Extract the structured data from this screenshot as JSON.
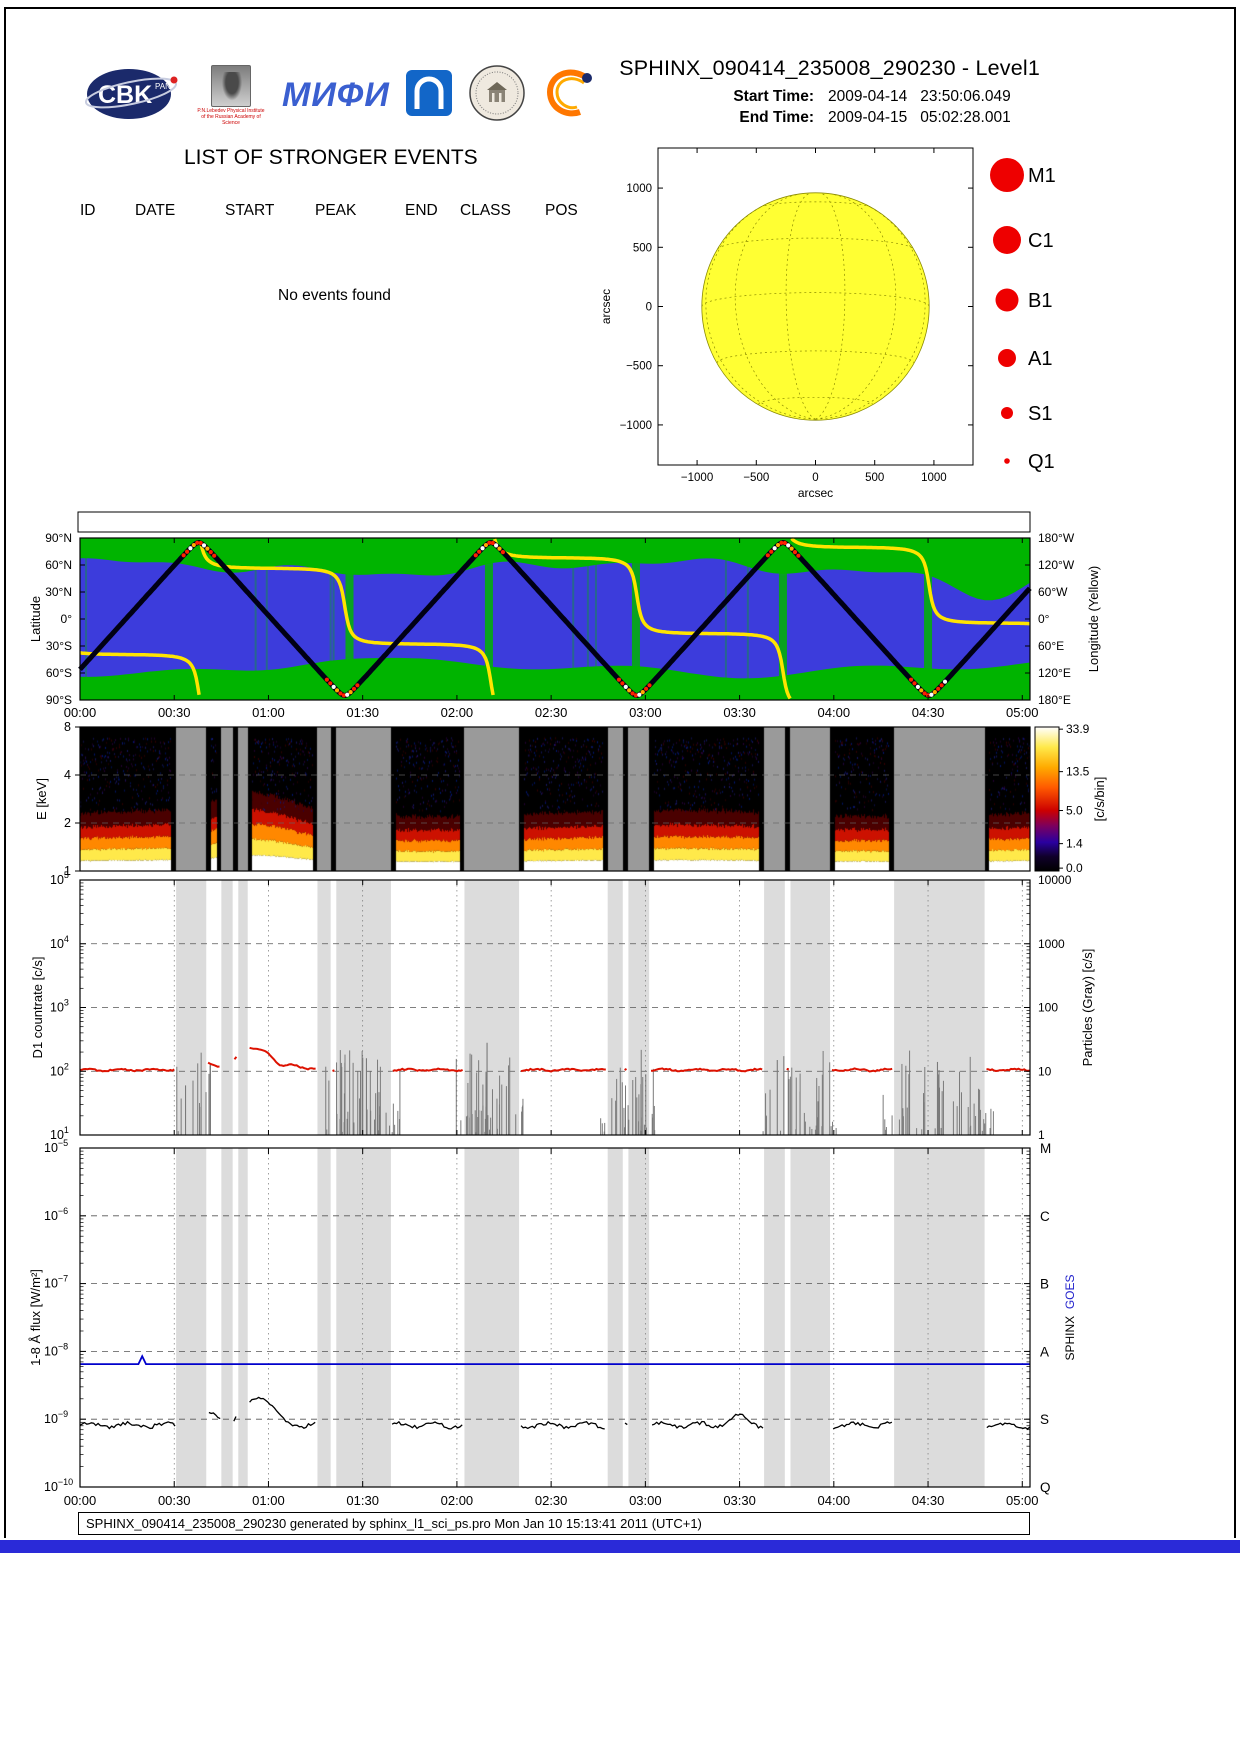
{
  "page": {
    "title": "SPHINX_090414_235008_290230 - Level1",
    "start_time_label": "Start Time:",
    "start_time": "2009-04-14   23:50:06.049",
    "end_time_label": "End Time:",
    "end_time": "2009-04-15   05:02:28.001",
    "footer": "SPHINX_090414_235008_290230 generated by sphinx_l1_sci_ps.pro Mon Jan 10 15:13:41 2011 (UTC+1)"
  },
  "logos": {
    "cbk_text": "CBK",
    "cbk_sub": "PAN",
    "lebedev_caption": "P.N.Lebedev Physical Institute of the Russian Academy of Science",
    "mephi_text": "МИФИ"
  },
  "events": {
    "title": "LIST OF STRONGER EVENTS",
    "columns": [
      "ID",
      "DATE",
      "START",
      "PEAK",
      "END",
      "CLASS",
      "POS"
    ],
    "empty_message": "No events found"
  },
  "timeline": {
    "hours": 5.041,
    "tick_interval_h": 0.5,
    "tick_labels": [
      "00:00",
      "00:30",
      "01:00",
      "01:30",
      "02:00",
      "02:30",
      "03:00",
      "03:30",
      "04:00",
      "04:30",
      "05:00"
    ],
    "gaps": [
      [
        0.51,
        0.67
      ],
      [
        0.75,
        0.81
      ],
      [
        0.84,
        0.89
      ],
      [
        1.26,
        1.33
      ],
      [
        1.36,
        1.65
      ],
      [
        2.04,
        2.33
      ],
      [
        2.8,
        2.88
      ],
      [
        2.91,
        3.02
      ],
      [
        3.63,
        3.74
      ],
      [
        3.77,
        3.98
      ],
      [
        4.32,
        4.8
      ]
    ]
  },
  "chart_data": [
    {
      "id": "sun",
      "type": "scatter",
      "title": "",
      "xlabel": "arcsec",
      "ylabel": "arcsec",
      "axis_ticks": [
        -1000,
        -500,
        0,
        500,
        1000
      ],
      "axis_range": [
        -1330,
        1330
      ],
      "sun_radius_arcsec": 960,
      "sun_color": "#ffff33",
      "grid_color": "#8a8a00",
      "flare_points": [],
      "legend_color": "#ee0000",
      "legend": [
        {
          "label": "M1",
          "r": 17
        },
        {
          "label": "C1",
          "r": 14
        },
        {
          "label": "B1",
          "r": 11.5
        },
        {
          "label": "A1",
          "r": 9
        },
        {
          "label": "S1",
          "r": 6
        },
        {
          "label": "Q1",
          "r": 2.8
        }
      ]
    },
    {
      "id": "orbit",
      "type": "line",
      "ylabel_left": "Latitude",
      "ylabel_right": "Longitude (Yellow)",
      "lat_tick_labels": [
        "90°N",
        "60°N",
        "30°N",
        "0°",
        "30°S",
        "60°S",
        "90°S"
      ],
      "lon_tick_labels": [
        "180°W",
        "120°W",
        "60°W",
        "0°",
        "60°E",
        "120°E",
        "180°E"
      ],
      "ocean_color": "#3c3cdc",
      "land_color": "#00b400",
      "track": {
        "period_h": 1.55,
        "asc_node_h": 0.2425,
        "inclination_deg": 85,
        "asc_node_lon_deg": 79,
        "earth_rate_deg_h": 15.04,
        "lat_color": "#000014",
        "lon_color": "#ffe400"
      },
      "belt_crossings": [
        [
          0.55,
          0.72
        ],
        [
          1.31,
          1.48
        ],
        [
          2.1,
          2.25
        ],
        [
          2.86,
          3.03
        ],
        [
          3.65,
          3.82
        ],
        [
          4.41,
          4.59
        ]
      ],
      "belt_dot_colors": [
        "#ff2000",
        "#ff2000",
        "#ffffff",
        "#ffaa00"
      ],
      "green_streaks_h": [
        1.43,
        2.17,
        2.95,
        3.73,
        4.5
      ]
    },
    {
      "id": "spectrogram",
      "type": "heatmap",
      "ylabel": "E [keV]",
      "e_ticks": [
        1,
        2,
        4,
        8
      ],
      "e_range": [
        1,
        8
      ],
      "background": "#000000",
      "gap_color": "#9a9a9a",
      "band_layers": [
        {
          "e_top": 1.16,
          "color": "#ffffff"
        },
        {
          "e_top": 1.36,
          "color": "#ffe94a"
        },
        {
          "e_top": 1.6,
          "color": "#ff8800"
        },
        {
          "e_top": 1.88,
          "color": "#cc1100"
        },
        {
          "e_top": 2.3,
          "color": "#4a0000"
        }
      ],
      "enhancement": {
        "t": 0.93,
        "w": 0.25,
        "factor": 0.55
      },
      "colorbar": {
        "label": "[c/s/bin]",
        "ticks": [
          {
            "v": "0.0",
            "f": 0.02
          },
          {
            "v": "1.4",
            "f": 0.19
          },
          {
            "v": "5.0",
            "f": 0.42
          },
          {
            "v": "13.5",
            "f": 0.69
          },
          {
            "v": "33.9",
            "f": 0.985
          }
        ],
        "stops": [
          [
            0,
            "#000000"
          ],
          [
            0.1,
            "#10002a"
          ],
          [
            0.2,
            "#2a00a0"
          ],
          [
            0.31,
            "#7a0060"
          ],
          [
            0.42,
            "#cc0000"
          ],
          [
            0.58,
            "#ff5a00"
          ],
          [
            0.72,
            "#ffaa00"
          ],
          [
            0.86,
            "#ffe94a"
          ],
          [
            1,
            "#ffffff"
          ]
        ]
      }
    },
    {
      "id": "d1",
      "type": "line",
      "ylabel": "D1 countrate [c/s]",
      "ylabel_right": "Particles (Gray) [c/s]",
      "left_exponents": [
        5,
        4,
        3,
        2,
        1
      ],
      "right_tick_labels": [
        "10000",
        "1000",
        "100",
        "10",
        "1"
      ],
      "series": [
        {
          "name": "D1 countrate",
          "color": "#dd1100",
          "baseline_cps": 105,
          "bumps": [
            {
              "t": 0.63,
              "amp": 55,
              "w": 0.07
            },
            {
              "t": 0.9,
              "amp": 120,
              "w": 0.09
            },
            {
              "t": 0.99,
              "amp": 55,
              "w": 0.05
            },
            {
              "t": 1.13,
              "amp": 25,
              "w": 0.05
            }
          ]
        },
        {
          "name": "Particles",
          "color": "#7a7a7a",
          "clusters": [
            [
              0.5,
              0.7,
              12
            ],
            [
              1.28,
              1.7,
              46
            ],
            [
              1.98,
              2.36,
              42
            ],
            [
              2.76,
              3.08,
              38
            ],
            [
              3.58,
              4.02,
              40
            ],
            [
              4.24,
              4.86,
              52
            ]
          ],
          "tall_spikes": [
            [
              2.16,
              280
            ],
            [
              1.52,
              160
            ],
            [
              3.7,
              150
            ],
            [
              4.55,
              140
            ],
            [
              0.56,
              60
            ]
          ]
        }
      ]
    },
    {
      "id": "flux",
      "type": "line",
      "ylabel": "1-8 Å flux [W/m²]",
      "left_exponents": [
        -5,
        -6,
        -7,
        -8,
        -9,
        -10
      ],
      "right_class_labels": [
        "M",
        "C",
        "B",
        "A",
        "S",
        "Q"
      ],
      "right_axis_label_black": "SPHINX",
      "right_axis_label_blue": "GOES",
      "series": [
        {
          "name": "GOES",
          "color": "#0000cc",
          "level_wm2": 6.5e-09,
          "spike": {
            "t": 0.33,
            "value_wm2": 8.5e-09
          }
        },
        {
          "name": "SPHINX",
          "color": "#000000",
          "baseline_wm2": 8.2e-10,
          "bumps": [
            {
              "t": 0.95,
              "amp_wm2": 1.3e-09,
              "w": 0.09
            },
            {
              "t": 0.7,
              "amp_wm2": 4e-10,
              "w": 0.06
            },
            {
              "t": 3.5,
              "amp_wm2": 3e-10,
              "w": 0.06
            }
          ]
        }
      ]
    }
  ]
}
